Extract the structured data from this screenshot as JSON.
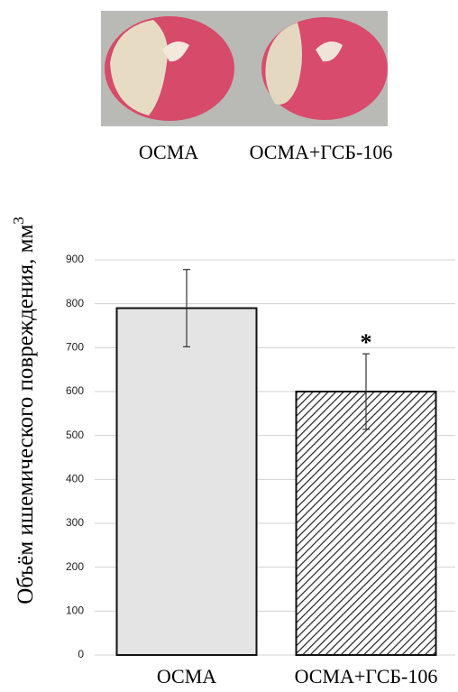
{
  "chart_data": {
    "type": "bar",
    "y_label": "Объём ишемического повреждения, мм",
    "y_label_superscript": "3",
    "categories": [
      "ОСМА",
      "ОСМА+ГСБ-106"
    ],
    "values": [
      790,
      600
    ],
    "errors": [
      88,
      86
    ],
    "annotations": [
      "",
      "*"
    ],
    "colors": [
      "#e4e4e4",
      "#ffffff"
    ],
    "hatch": [
      false,
      true
    ],
    "ylim": [
      0,
      900
    ],
    "yticks": [
      0,
      100,
      200,
      300,
      400,
      500,
      600,
      700,
      800,
      900
    ],
    "grid": true
  }
}
